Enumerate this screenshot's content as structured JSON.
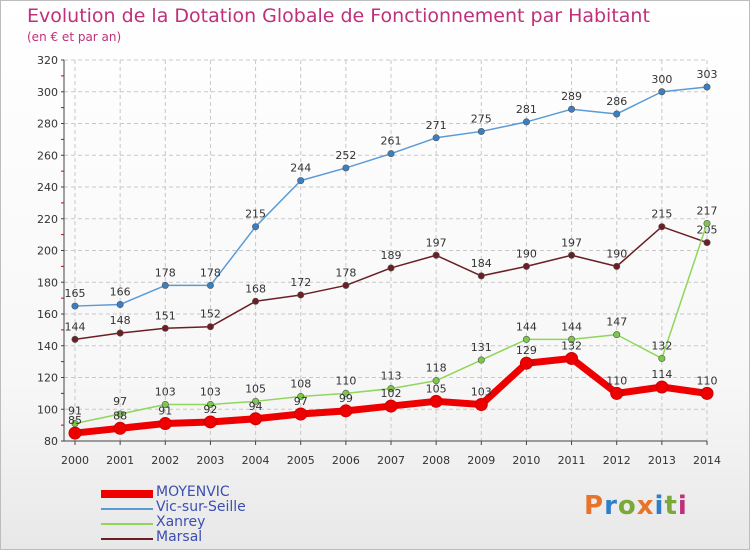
{
  "title": "Evolution de la Dotation Globale de Fonctionnement par Habitant",
  "subtitle": "(en € et par an)",
  "logo": {
    "text": "Proxiti",
    "colors": [
      "#e8742c",
      "#2f7fc8",
      "#7aa83a",
      "#e8742c",
      "#2f7fc8",
      "#7aa83a",
      "#c0307a"
    ]
  },
  "chart_data": {
    "type": "line",
    "categories": [
      "2000",
      "2001",
      "2002",
      "2003",
      "2004",
      "2005",
      "2006",
      "2007",
      "2008",
      "2009",
      "2010",
      "2011",
      "2012",
      "2013",
      "2014"
    ],
    "ylim": [
      80,
      320
    ],
    "yticks": [
      80,
      100,
      120,
      140,
      160,
      180,
      200,
      220,
      240,
      260,
      280,
      300,
      320
    ],
    "grid": true,
    "legend_position": "bottom-left",
    "series": [
      {
        "name": "Vic-sur-Seille",
        "color": "#5a9bd6",
        "marker": "#3a7fc4",
        "values": [
          165,
          166,
          178,
          178,
          215,
          244,
          252,
          261,
          271,
          275,
          281,
          289,
          286,
          300,
          303
        ]
      },
      {
        "name": "Marsal",
        "color": "#6b1f24",
        "marker": "#6b1f24",
        "values": [
          144,
          148,
          151,
          152,
          168,
          172,
          178,
          189,
          197,
          184,
          190,
          197,
          190,
          215,
          205
        ]
      },
      {
        "name": "Xanrey",
        "color": "#8fd65a",
        "marker": "#7cc84a",
        "values": [
          91,
          97,
          103,
          103,
          105,
          108,
          110,
          113,
          118,
          131,
          144,
          144,
          147,
          132,
          217
        ]
      },
      {
        "name": "MOYENVIC",
        "color": "#ee0000",
        "marker": "#ee0000",
        "values": [
          85,
          88,
          91,
          92,
          94,
          97,
          99,
          102,
          105,
          103,
          129,
          132,
          110,
          114,
          110
        ]
      }
    ],
    "legend_order": [
      "MOYENVIC",
      "Vic-sur-Seille",
      "Xanrey",
      "Marsal"
    ]
  }
}
